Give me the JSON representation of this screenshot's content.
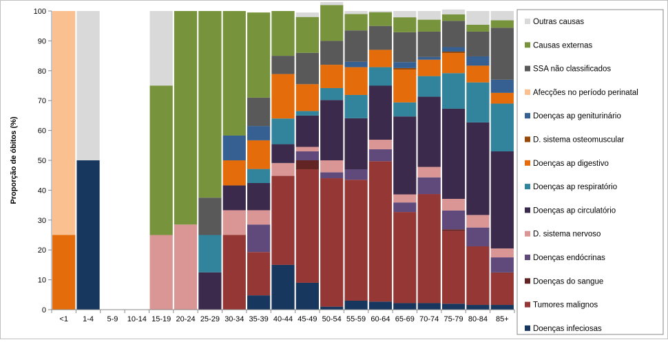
{
  "chart_data": {
    "type": "bar",
    "stacked": true,
    "ylabel": "Proporção de óbitos (%)",
    "ylim": [
      0,
      100
    ],
    "yticks": [
      0,
      10,
      20,
      30,
      40,
      50,
      60,
      70,
      80,
      90,
      100
    ],
    "categories": [
      "<1",
      "1-4",
      "5-9",
      "10-14",
      "15-19",
      "20-24",
      "25-29",
      "30-34",
      "35-39",
      "40-44",
      "45-49",
      "50-54",
      "55-59",
      "60-64",
      "65-69",
      "70-74",
      "75-79",
      "80-84",
      "85+"
    ],
    "legend_position": "right",
    "series": [
      {
        "name": "Doenças infeciosas",
        "color": "#17375e",
        "values": [
          0,
          50,
          0,
          0,
          0,
          0,
          0,
          0,
          4.8,
          15,
          9,
          1,
          3,
          2.7,
          2.2,
          2.2,
          2,
          1.6,
          1.6
        ]
      },
      {
        "name": "Tumores malignos",
        "color": "#953735",
        "values": [
          0,
          0,
          0,
          0,
          0,
          0,
          0,
          25,
          14.5,
          29.8,
          38,
          43,
          40.5,
          47,
          30.5,
          36.5,
          24.4,
          19.6,
          10.7
        ]
      },
      {
        "name": "Doenças do sangue",
        "color": "#632523",
        "values": [
          0,
          0,
          0,
          0,
          0,
          0,
          0,
          0,
          0,
          0,
          3,
          0,
          0,
          0,
          0,
          0,
          0.5,
          0,
          0.2
        ]
      },
      {
        "name": "Doenças endócrinas",
        "color": "#604a7b",
        "values": [
          0,
          0,
          0,
          0,
          0,
          0,
          0,
          0,
          9.2,
          0,
          3,
          2,
          3.5,
          4,
          3.2,
          5.6,
          6.3,
          6.3,
          5
        ]
      },
      {
        "name": "D. sistema nervoso",
        "color": "#d99694",
        "values": [
          0,
          0,
          0,
          0,
          25,
          28.5,
          0,
          8.3,
          4.8,
          4.3,
          1.5,
          4,
          0,
          3.2,
          2.7,
          3.5,
          3.9,
          4.2,
          3
        ]
      },
      {
        "name": "Doenças ap circulatório",
        "color": "#3c2a4c",
        "values": [
          0,
          0,
          0,
          0,
          0,
          0,
          12.5,
          8.3,
          9.1,
          6.3,
          10.5,
          20.2,
          17.1,
          18.1,
          26.1,
          23.5,
          30.2,
          31,
          32.5
        ]
      },
      {
        "name": "Doenças ap respiratório",
        "color": "#31849b",
        "values": [
          0,
          0,
          0,
          0,
          0,
          0,
          12.5,
          0,
          4.7,
          8.6,
          1.5,
          4,
          7.8,
          6.2,
          4.7,
          6.9,
          11.9,
          13.4,
          16
        ]
      },
      {
        "name": "Doenças ap digestivo",
        "color": "#e46c0a",
        "values": [
          25,
          0,
          0,
          0,
          0,
          0,
          0,
          8.4,
          9.6,
          14.9,
          9,
          7.8,
          9.3,
          5.8,
          11,
          5.5,
          6.7,
          5.6,
          3.6
        ]
      },
      {
        "name": "D. sistema osteomuscular",
        "color": "#984807",
        "values": [
          0,
          0,
          0,
          0,
          0,
          0,
          0,
          0,
          0,
          0,
          0,
          0,
          0,
          0,
          0.5,
          0,
          0.5,
          0,
          0
        ]
      },
      {
        "name": "Doenças ap geniturinário",
        "color": "#366092",
        "values": [
          0,
          0,
          0,
          0,
          0,
          0,
          0,
          8.3,
          4.8,
          0,
          0,
          0,
          1.8,
          0,
          2,
          0.9,
          1.5,
          3.1,
          4.4
        ]
      },
      {
        "name": "Afecções no período perinatal",
        "color": "#fac090",
        "values": [
          75,
          0,
          0,
          0,
          0,
          0,
          0,
          0,
          0,
          0,
          0,
          0,
          0,
          0,
          0,
          0,
          0,
          0,
          0
        ]
      },
      {
        "name": "SSA não classificados",
        "color": "#595959",
        "values": [
          0,
          0,
          0,
          0,
          0,
          0,
          12.5,
          0,
          9.5,
          6.1,
          10.5,
          8,
          10.5,
          8,
          10,
          8.5,
          8.8,
          8.3,
          17.4
        ]
      },
      {
        "name": "Causas externas",
        "color": "#77933c",
        "values": [
          0,
          0,
          0,
          0,
          50,
          71.5,
          62.5,
          41.7,
          28.5,
          15,
          12,
          12,
          5.5,
          4.6,
          5,
          4,
          2.2,
          2.3,
          2.5
        ]
      },
      {
        "name": "Outras causas",
        "color": "#d9d9d9",
        "values": [
          0,
          50,
          0,
          0,
          25,
          0,
          0,
          0,
          0,
          0,
          1.5,
          1,
          1,
          0.4,
          2.1,
          2.9,
          1.6,
          4.6,
          3.1
        ]
      }
    ]
  }
}
